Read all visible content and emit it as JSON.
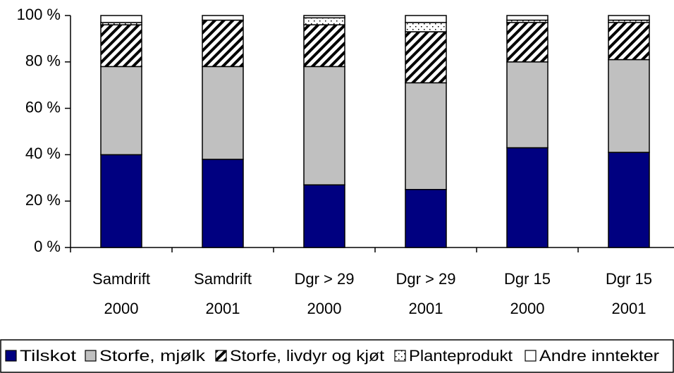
{
  "chart_data": {
    "type": "stacked_bar",
    "categories": [
      [
        "Samdrift",
        "2000"
      ],
      [
        "Samdrift",
        "2001"
      ],
      [
        "Dgr > 29",
        "2000"
      ],
      [
        "Dgr > 29",
        "2001"
      ],
      [
        "Dgr 15",
        "2000"
      ],
      [
        "Dgr 15",
        "2001"
      ]
    ],
    "series": [
      {
        "name": "Tilskot",
        "color": "#000080",
        "values": [
          40,
          38,
          27,
          25,
          43,
          41
        ]
      },
      {
        "name": "Storfe, mjølk",
        "color": "#c0c0c0",
        "values": [
          38,
          40,
          51,
          46,
          37,
          40
        ]
      },
      {
        "name": "Storfe, livdyr og kjøt",
        "color": "#ffffff",
        "pattern": "diagonal",
        "values": [
          18,
          20,
          18,
          22,
          17,
          16
        ]
      },
      {
        "name": "Planteprodukt",
        "color": "#ffffff",
        "pattern": "dots",
        "values": [
          1,
          0,
          3,
          4,
          1,
          1
        ]
      },
      {
        "name": "Andre inntekter",
        "color": "#ffffff",
        "values": [
          3,
          2,
          1,
          3,
          2,
          2
        ]
      }
    ],
    "ylim": [
      0,
      100
    ],
    "yticks": [
      {
        "value": 0,
        "label": "0 %"
      },
      {
        "value": 20,
        "label": "20 %"
      },
      {
        "value": 40,
        "label": "40 %"
      },
      {
        "value": 60,
        "label": "60 %"
      },
      {
        "value": 80,
        "label": "80 %"
      },
      {
        "value": 100,
        "label": "100 %"
      }
    ],
    "legend": "bottom"
  }
}
